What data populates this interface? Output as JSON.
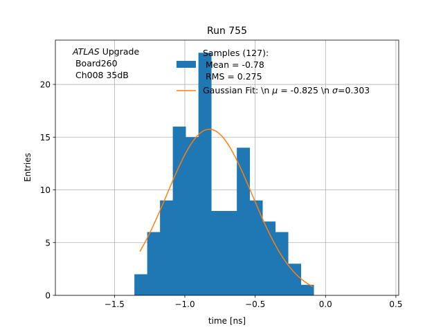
{
  "chart_data": {
    "type": "bar",
    "title": "Run 755",
    "xlabel": "time [ns]",
    "ylabel": "Entries",
    "xlim": [
      -1.92,
      0.52
    ],
    "ylim": [
      0,
      24.2
    ],
    "grid": true,
    "xticks": [
      -1.5,
      -1.0,
      -0.5,
      0.0,
      0.5
    ],
    "xtick_labels": [
      "−1.5",
      "−1.0",
      "−0.5",
      "0.0",
      "0.5"
    ],
    "yticks": [
      0,
      5,
      10,
      15,
      20
    ],
    "ytick_labels": [
      "0",
      "5",
      "10",
      "15",
      "20"
    ],
    "histogram": {
      "bin_edges": [
        -1.3584,
        -1.2674,
        -1.1764,
        -1.0854,
        -0.9944,
        -0.9034,
        -0.8124,
        -0.7214,
        -0.6304,
        -0.5394,
        -0.4484,
        -0.3574,
        -0.2664,
        -0.1754,
        -0.0844
      ],
      "counts": [
        2,
        6,
        9,
        16,
        15,
        23,
        8,
        8,
        14,
        9,
        7,
        6,
        3,
        1
      ],
      "color": "#1f77b4"
    },
    "fit": {
      "mu": -0.825,
      "sigma": 0.303,
      "amplitude": 15.75,
      "x_range": [
        -1.32,
        -0.09
      ],
      "color": "#ff7f0e"
    },
    "annotation": {
      "line1_italic": "ATLAS",
      "line1_rest": " Upgrade",
      "line2": " Board260",
      "line3": " Ch008 35dB"
    },
    "legend": {
      "position": "top-right",
      "hist_label_line1": "Samples (127):",
      "hist_label_line2": " Mean = -0.78",
      "hist_label_line3": " RMS = 0.275",
      "fit_label_prefix": "Gaussian Fit: \\n ",
      "fit_mu_symbol": "μ",
      "fit_mu_value": " = -0.825 \\n ",
      "fit_sigma_symbol": "σ",
      "fit_sigma_value": "=0.303"
    }
  }
}
